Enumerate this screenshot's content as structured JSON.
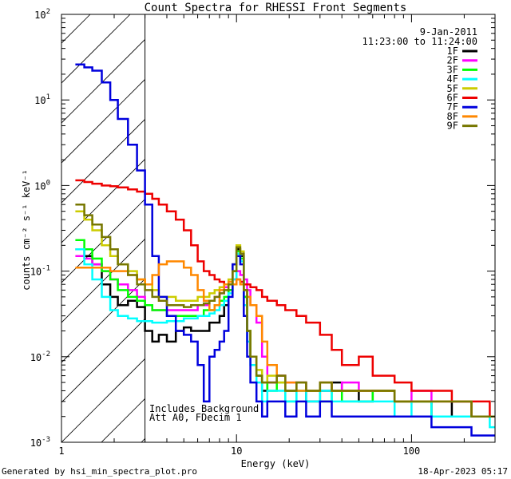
{
  "chart_data": {
    "type": "line",
    "title": "Count Spectra for RHESSI Front Segments",
    "xlabel": "Energy (keV)",
    "ylabel": "counts cm⁻² s⁻¹ keV⁻¹",
    "x_scale": "log",
    "y_scale": "log",
    "xlim": [
      1,
      300
    ],
    "ylim": [
      0.001,
      100
    ],
    "x_ticks": [
      {
        "value": 1,
        "label": "1"
      },
      {
        "value": 10,
        "label": "10"
      },
      {
        "value": 100,
        "label": "100"
      }
    ],
    "y_ticks": [
      {
        "value": 0.001,
        "base": "10",
        "exp": "-3"
      },
      {
        "value": 0.01,
        "base": "10",
        "exp": "-2"
      },
      {
        "value": 0.1,
        "base": "10",
        "exp": "-1"
      },
      {
        "value": 1,
        "base": "10",
        "exp": "0"
      },
      {
        "value": 10,
        "base": "10",
        "exp": "1"
      },
      {
        "value": 100,
        "base": "10",
        "exp": "2"
      }
    ],
    "date": "9-Jan-2011",
    "time_range": "11:23:00 to 11:24:00",
    "hatched_region": {
      "x_from": 1,
      "x_to": 3
    },
    "annotations": [
      "Includes Background",
      "Att A0, FDecim 1"
    ],
    "series": [
      {
        "name": "1F",
        "color": "#000000",
        "x": [
          1.2,
          1.35,
          1.5,
          1.7,
          1.9,
          2.1,
          2.4,
          2.7,
          3.0,
          3.3,
          3.6,
          4.0,
          4.5,
          5.0,
          5.5,
          6.0,
          6.5,
          7.0,
          7.5,
          8.0,
          8.5,
          9.0,
          9.5,
          10.0,
          10.5,
          11.0,
          11.5,
          12.0,
          13.0,
          14.0,
          15.0,
          17.0,
          19.0,
          22.0,
          25.0,
          30.0,
          35.0,
          40.0,
          50.0,
          60.0,
          80.0,
          100.0,
          130.0,
          170.0,
          220.0,
          280.0
        ],
        "values": [
          0.18,
          0.15,
          0.12,
          0.07,
          0.05,
          0.04,
          0.045,
          0.038,
          0.02,
          0.015,
          0.018,
          0.015,
          0.02,
          0.022,
          0.02,
          0.02,
          0.02,
          0.025,
          0.025,
          0.03,
          0.04,
          0.06,
          0.12,
          0.18,
          0.15,
          0.05,
          0.02,
          0.01,
          0.006,
          0.004,
          0.005,
          0.006,
          0.004,
          0.005,
          0.003,
          0.004,
          0.005,
          0.004,
          0.003,
          0.004,
          0.003,
          0.003,
          0.002,
          0.003,
          0.002,
          0.002
        ]
      },
      {
        "name": "2F",
        "color": "#ff00ff",
        "x": [
          1.2,
          1.35,
          1.5,
          1.7,
          1.9,
          2.1,
          2.4,
          2.7,
          3.0,
          3.3,
          3.6,
          4.0,
          4.5,
          5.0,
          5.5,
          6.0,
          6.5,
          7.0,
          7.5,
          8.0,
          8.5,
          9.0,
          9.5,
          10.0,
          10.5,
          11.0,
          11.5,
          12.0,
          13.0,
          14.0,
          15.0,
          17.0,
          19.0,
          22.0,
          25.0,
          30.0,
          35.0,
          40.0,
          50.0,
          60.0,
          80.0,
          100.0,
          130.0,
          170.0,
          220.0,
          280.0
        ],
        "values": [
          0.15,
          0.14,
          0.12,
          0.1,
          0.08,
          0.07,
          0.06,
          0.05,
          0.04,
          0.035,
          0.035,
          0.035,
          0.035,
          0.035,
          0.035,
          0.04,
          0.04,
          0.045,
          0.05,
          0.055,
          0.065,
          0.07,
          0.08,
          0.1,
          0.09,
          0.08,
          0.06,
          0.04,
          0.025,
          0.01,
          0.005,
          0.006,
          0.005,
          0.005,
          0.004,
          0.005,
          0.004,
          0.005,
          0.004,
          0.004,
          0.003,
          0.004,
          0.003,
          0.003,
          0.002,
          0.002
        ]
      },
      {
        "name": "3F",
        "color": "#00ff00",
        "x": [
          1.2,
          1.35,
          1.5,
          1.7,
          1.9,
          2.1,
          2.4,
          2.7,
          3.0,
          3.3,
          3.6,
          4.0,
          4.5,
          5.0,
          5.5,
          6.0,
          6.5,
          7.0,
          7.5,
          8.0,
          8.5,
          9.0,
          9.5,
          10.0,
          10.5,
          11.0,
          11.5,
          12.0,
          13.0,
          14.0,
          15.0,
          17.0,
          19.0,
          22.0,
          25.0,
          30.0,
          35.0,
          40.0,
          50.0,
          60.0,
          80.0,
          100.0,
          130.0,
          170.0,
          220.0,
          280.0
        ],
        "values": [
          0.23,
          0.18,
          0.14,
          0.1,
          0.08,
          0.06,
          0.05,
          0.045,
          0.04,
          0.035,
          0.035,
          0.03,
          0.03,
          0.03,
          0.03,
          0.03,
          0.035,
          0.035,
          0.04,
          0.045,
          0.05,
          0.06,
          0.1,
          0.17,
          0.14,
          0.05,
          0.02,
          0.01,
          0.006,
          0.005,
          0.004,
          0.005,
          0.003,
          0.004,
          0.004,
          0.003,
          0.004,
          0.003,
          0.003,
          0.004,
          0.003,
          0.003,
          0.002,
          0.002,
          0.002,
          0.002
        ]
      },
      {
        "name": "4F",
        "color": "#00ffff",
        "x": [
          1.2,
          1.35,
          1.5,
          1.7,
          1.9,
          2.1,
          2.4,
          2.7,
          3.0,
          3.3,
          3.6,
          4.0,
          4.5,
          5.0,
          5.5,
          6.0,
          6.5,
          7.0,
          7.5,
          8.0,
          8.5,
          9.0,
          9.5,
          10.0,
          10.5,
          11.0,
          11.5,
          12.0,
          13.0,
          14.0,
          15.0,
          17.0,
          19.0,
          22.0,
          25.0,
          30.0,
          35.0,
          40.0,
          50.0,
          60.0,
          80.0,
          100.0,
          130.0,
          170.0,
          220.0,
          280.0
        ],
        "values": [
          0.18,
          0.12,
          0.08,
          0.05,
          0.035,
          0.03,
          0.028,
          0.026,
          0.026,
          0.025,
          0.025,
          0.026,
          0.026,
          0.028,
          0.028,
          0.03,
          0.03,
          0.032,
          0.035,
          0.04,
          0.045,
          0.055,
          0.08,
          0.16,
          0.13,
          0.04,
          0.015,
          0.008,
          0.005,
          0.003,
          0.004,
          0.004,
          0.003,
          0.004,
          0.003,
          0.004,
          0.003,
          0.003,
          0.003,
          0.003,
          0.002,
          0.003,
          0.002,
          0.002,
          0.002,
          0.0015
        ]
      },
      {
        "name": "5F",
        "color": "#cccc00",
        "x": [
          1.2,
          1.35,
          1.5,
          1.7,
          1.9,
          2.1,
          2.4,
          2.7,
          3.0,
          3.3,
          3.6,
          4.0,
          4.5,
          5.0,
          5.5,
          6.0,
          6.5,
          7.0,
          7.5,
          8.0,
          8.5,
          9.0,
          9.5,
          10.0,
          10.5,
          11.0,
          11.5,
          12.0,
          13.0,
          14.0,
          15.0,
          17.0,
          19.0,
          22.0,
          25.0,
          30.0,
          35.0,
          40.0,
          50.0,
          60.0,
          80.0,
          100.0,
          130.0,
          170.0,
          220.0,
          280.0
        ],
        "values": [
          0.5,
          0.4,
          0.3,
          0.2,
          0.15,
          0.12,
          0.1,
          0.08,
          0.07,
          0.06,
          0.05,
          0.05,
          0.045,
          0.045,
          0.045,
          0.05,
          0.05,
          0.055,
          0.06,
          0.065,
          0.07,
          0.08,
          0.12,
          0.2,
          0.17,
          0.06,
          0.02,
          0.01,
          0.007,
          0.005,
          0.006,
          0.005,
          0.004,
          0.005,
          0.004,
          0.005,
          0.004,
          0.004,
          0.004,
          0.004,
          0.003,
          0.003,
          0.003,
          0.003,
          0.002,
          0.002
        ]
      },
      {
        "name": "6F",
        "color": "#ee0000",
        "x": [
          1.2,
          1.35,
          1.5,
          1.7,
          1.9,
          2.1,
          2.4,
          2.7,
          3.0,
          3.3,
          3.6,
          4.0,
          4.5,
          5.0,
          5.5,
          6.0,
          6.5,
          7.0,
          7.5,
          8.0,
          8.5,
          9.0,
          9.5,
          10.0,
          10.5,
          11.0,
          11.5,
          12.0,
          13.0,
          14.0,
          15.0,
          17.0,
          19.0,
          22.0,
          25.0,
          30.0,
          35.0,
          40.0,
          50.0,
          60.0,
          80.0,
          100.0,
          130.0,
          170.0,
          220.0,
          280.0
        ],
        "values": [
          1.15,
          1.1,
          1.05,
          1.0,
          0.98,
          0.95,
          0.9,
          0.85,
          0.8,
          0.7,
          0.6,
          0.5,
          0.4,
          0.3,
          0.2,
          0.13,
          0.1,
          0.09,
          0.08,
          0.075,
          0.07,
          0.07,
          0.07,
          0.08,
          0.075,
          0.07,
          0.07,
          0.065,
          0.06,
          0.05,
          0.045,
          0.04,
          0.035,
          0.03,
          0.025,
          0.018,
          0.012,
          0.008,
          0.01,
          0.006,
          0.005,
          0.004,
          0.004,
          0.003,
          0.003,
          0.002
        ]
      },
      {
        "name": "7F",
        "color": "#0000dd",
        "x": [
          1.2,
          1.35,
          1.5,
          1.7,
          1.9,
          2.1,
          2.4,
          2.7,
          3.0,
          3.3,
          3.6,
          4.0,
          4.5,
          5.0,
          5.5,
          6.0,
          6.5,
          7.0,
          7.5,
          8.0,
          8.5,
          9.0,
          9.5,
          10.0,
          10.5,
          11.0,
          11.5,
          12.0,
          13.0,
          14.0,
          15.0,
          17.0,
          19.0,
          22.0,
          25.0,
          30.0,
          35.0,
          40.0,
          50.0,
          60.0,
          80.0,
          100.0,
          130.0,
          170.0,
          220.0,
          280.0
        ],
        "values": [
          26,
          24,
          22,
          16,
          10,
          6,
          3,
          1.5,
          0.6,
          0.15,
          0.05,
          0.03,
          0.02,
          0.018,
          0.015,
          0.008,
          0.003,
          0.01,
          0.012,
          0.015,
          0.02,
          0.05,
          0.12,
          0.15,
          0.12,
          0.03,
          0.01,
          0.005,
          0.003,
          0.002,
          0.003,
          0.003,
          0.002,
          0.003,
          0.002,
          0.003,
          0.002,
          0.002,
          0.002,
          0.002,
          0.002,
          0.002,
          0.0015,
          0.0015,
          0.0012,
          0.0012
        ]
      },
      {
        "name": "8F",
        "color": "#ff8800",
        "x": [
          1.2,
          1.35,
          1.5,
          1.7,
          1.9,
          2.1,
          2.4,
          2.7,
          3.0,
          3.3,
          3.6,
          4.0,
          4.5,
          5.0,
          5.5,
          6.0,
          6.5,
          7.0,
          7.5,
          8.0,
          8.5,
          9.0,
          9.5,
          10.0,
          10.5,
          11.0,
          11.5,
          12.0,
          13.0,
          14.0,
          15.0,
          17.0,
          19.0,
          22.0,
          25.0,
          30.0,
          35.0,
          40.0,
          50.0,
          60.0,
          80.0,
          100.0,
          130.0,
          170.0,
          220.0,
          280.0
        ],
        "values": [
          0.11,
          0.11,
          0.11,
          0.11,
          0.1,
          0.1,
          0.09,
          0.08,
          0.07,
          0.09,
          0.12,
          0.13,
          0.13,
          0.11,
          0.09,
          0.06,
          0.045,
          0.035,
          0.04,
          0.06,
          0.07,
          0.075,
          0.07,
          0.08,
          0.07,
          0.06,
          0.05,
          0.04,
          0.03,
          0.015,
          0.008,
          0.006,
          0.005,
          0.004,
          0.004,
          0.005,
          0.004,
          0.004,
          0.004,
          0.004,
          0.003,
          0.003,
          0.003,
          0.003,
          0.002,
          0.002
        ]
      },
      {
        "name": "9F",
        "color": "#777700",
        "x": [
          1.2,
          1.35,
          1.5,
          1.7,
          1.9,
          2.1,
          2.4,
          2.7,
          3.0,
          3.3,
          3.6,
          4.0,
          4.5,
          5.0,
          5.5,
          6.0,
          6.5,
          7.0,
          7.5,
          8.0,
          8.5,
          9.0,
          9.5,
          10.0,
          10.5,
          11.0,
          11.5,
          12.0,
          13.0,
          14.0,
          15.0,
          17.0,
          19.0,
          22.0,
          25.0,
          30.0,
          35.0,
          40.0,
          50.0,
          60.0,
          80.0,
          100.0,
          130.0,
          170.0,
          220.0,
          280.0
        ],
        "values": [
          0.6,
          0.45,
          0.35,
          0.25,
          0.18,
          0.12,
          0.09,
          0.07,
          0.06,
          0.05,
          0.045,
          0.04,
          0.04,
          0.038,
          0.04,
          0.04,
          0.042,
          0.045,
          0.05,
          0.055,
          0.06,
          0.07,
          0.1,
          0.19,
          0.16,
          0.06,
          0.02,
          0.01,
          0.006,
          0.005,
          0.005,
          0.006,
          0.004,
          0.005,
          0.004,
          0.005,
          0.004,
          0.004,
          0.004,
          0.004,
          0.003,
          0.003,
          0.003,
          0.003,
          0.002,
          0.002
        ]
      }
    ]
  },
  "footer": {
    "left": "Generated by hsi_min_spectra_plot.pro",
    "right": "18-Apr-2023 05:17"
  }
}
